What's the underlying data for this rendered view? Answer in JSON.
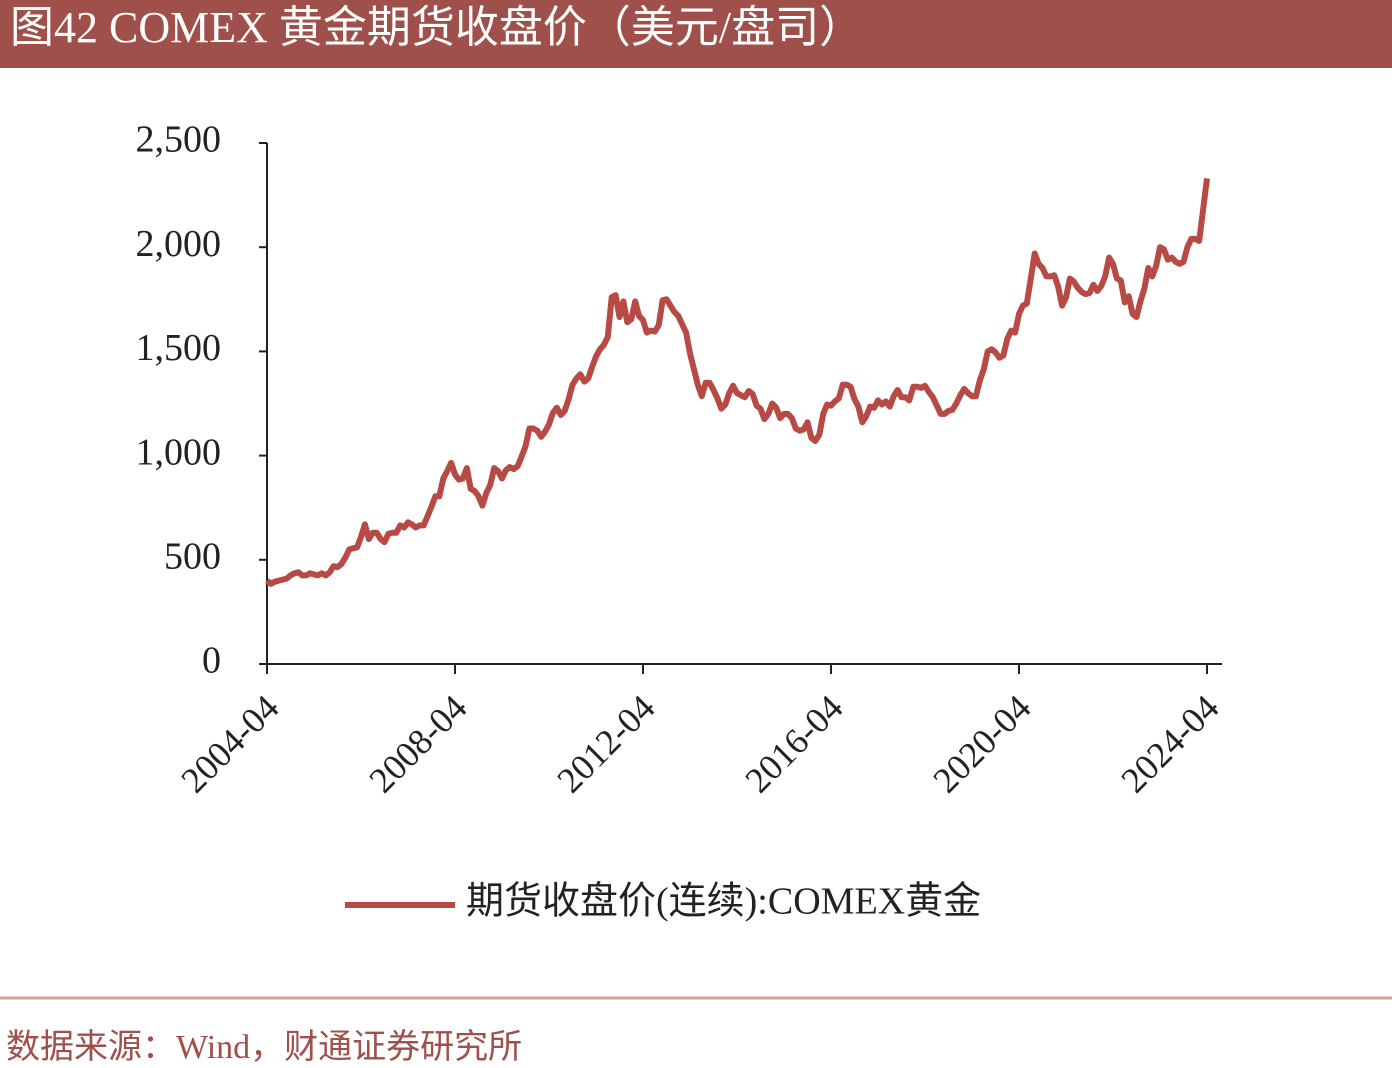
{
  "chart_data": {
    "type": "line",
    "title": "图42 COMEX 黄金期货收盘价（美元/盘司）",
    "source": "数据来源：Wind，财通证券研究所",
    "legend": "bottom",
    "x": [
      "2004-04",
      "2004-05",
      "2004-06",
      "2004-07",
      "2004-08",
      "2004-09",
      "2004-10",
      "2004-11",
      "2004-12",
      "2005-01",
      "2005-02",
      "2005-03",
      "2005-04",
      "2005-05",
      "2005-06",
      "2005-07",
      "2005-08",
      "2005-09",
      "2005-10",
      "2005-11",
      "2005-12",
      "2006-01",
      "2006-02",
      "2006-03",
      "2006-04",
      "2006-05",
      "2006-06",
      "2006-07",
      "2006-08",
      "2006-09",
      "2006-10",
      "2006-11",
      "2006-12",
      "2007-01",
      "2007-02",
      "2007-03",
      "2007-04",
      "2007-05",
      "2007-06",
      "2007-07",
      "2007-08",
      "2007-09",
      "2007-10",
      "2007-11",
      "2007-12",
      "2008-01",
      "2008-02",
      "2008-03",
      "2008-04",
      "2008-05",
      "2008-06",
      "2008-07",
      "2008-08",
      "2008-09",
      "2008-10",
      "2008-11",
      "2008-12",
      "2009-01",
      "2009-02",
      "2009-03",
      "2009-04",
      "2009-05",
      "2009-06",
      "2009-07",
      "2009-08",
      "2009-09",
      "2009-10",
      "2009-11",
      "2009-12",
      "2010-01",
      "2010-02",
      "2010-03",
      "2010-04",
      "2010-05",
      "2010-06",
      "2010-07",
      "2010-08",
      "2010-09",
      "2010-10",
      "2010-11",
      "2010-12",
      "2011-01",
      "2011-02",
      "2011-03",
      "2011-04",
      "2011-05",
      "2011-06",
      "2011-07",
      "2011-08",
      "2011-09",
      "2011-10",
      "2011-11",
      "2011-12",
      "2012-01",
      "2012-02",
      "2012-03",
      "2012-04",
      "2012-05",
      "2012-06",
      "2012-07",
      "2012-08",
      "2012-09",
      "2012-10",
      "2012-11",
      "2012-12",
      "2013-01",
      "2013-02",
      "2013-03",
      "2013-04",
      "2013-05",
      "2013-06",
      "2013-07",
      "2013-08",
      "2013-09",
      "2013-10",
      "2013-11",
      "2013-12",
      "2014-01",
      "2014-02",
      "2014-03",
      "2014-04",
      "2014-05",
      "2014-06",
      "2014-07",
      "2014-08",
      "2014-09",
      "2014-10",
      "2014-11",
      "2014-12",
      "2015-01",
      "2015-02",
      "2015-03",
      "2015-04",
      "2015-05",
      "2015-06",
      "2015-07",
      "2015-08",
      "2015-09",
      "2015-10",
      "2015-11",
      "2015-12",
      "2016-01",
      "2016-02",
      "2016-03",
      "2016-04",
      "2016-05",
      "2016-06",
      "2016-07",
      "2016-08",
      "2016-09",
      "2016-10",
      "2016-11",
      "2016-12",
      "2017-01",
      "2017-02",
      "2017-03",
      "2017-04",
      "2017-05",
      "2017-06",
      "2017-07",
      "2017-08",
      "2017-09",
      "2017-10",
      "2017-11",
      "2017-12",
      "2018-01",
      "2018-02",
      "2018-03",
      "2018-04",
      "2018-05",
      "2018-06",
      "2018-07",
      "2018-08",
      "2018-09",
      "2018-10",
      "2018-11",
      "2018-12",
      "2019-01",
      "2019-02",
      "2019-03",
      "2019-04",
      "2019-05",
      "2019-06",
      "2019-07",
      "2019-08",
      "2019-09",
      "2019-10",
      "2019-11",
      "2019-12",
      "2020-01",
      "2020-02",
      "2020-03",
      "2020-04",
      "2020-05",
      "2020-06",
      "2020-07",
      "2020-08",
      "2020-09",
      "2020-10",
      "2020-11",
      "2020-12",
      "2021-01",
      "2021-02",
      "2021-03",
      "2021-04",
      "2021-05",
      "2021-06",
      "2021-07",
      "2021-08",
      "2021-09",
      "2021-10",
      "2021-11",
      "2021-12",
      "2022-01",
      "2022-02",
      "2022-03",
      "2022-04",
      "2022-05",
      "2022-06",
      "2022-07",
      "2022-08",
      "2022-09",
      "2022-10",
      "2022-11",
      "2022-12",
      "2023-01",
      "2023-02",
      "2023-03",
      "2023-04",
      "2023-05",
      "2023-06",
      "2023-07",
      "2023-08",
      "2023-09",
      "2023-10",
      "2023-11",
      "2023-12",
      "2024-01",
      "2024-02",
      "2024-03",
      "2024-04"
    ],
    "series": [
      {
        "name": "期货收盘价(连续):COMEX黄金",
        "color": "#b84a45",
        "values": [
          400,
          385,
          395,
          400,
          405,
          410,
          425,
          435,
          440,
          425,
          425,
          435,
          430,
          425,
          435,
          425,
          440,
          470,
          465,
          480,
          510,
          550,
          555,
          560,
          610,
          670,
          600,
          630,
          630,
          600,
          585,
          625,
          630,
          630,
          665,
          655,
          680,
          670,
          655,
          665,
          665,
          710,
          755,
          805,
          805,
          890,
          925,
          965,
          910,
          885,
          890,
          940,
          840,
          830,
          805,
          760,
          820,
          860,
          940,
          925,
          890,
          930,
          945,
          935,
          950,
          995,
          1045,
          1130,
          1130,
          1120,
          1090,
          1115,
          1150,
          1205,
          1230,
          1195,
          1215,
          1270,
          1340,
          1370,
          1390,
          1355,
          1370,
          1425,
          1475,
          1510,
          1530,
          1570,
          1760,
          1770,
          1665,
          1740,
          1640,
          1655,
          1740,
          1670,
          1650,
          1590,
          1600,
          1595,
          1625,
          1745,
          1750,
          1720,
          1690,
          1670,
          1630,
          1590,
          1490,
          1415,
          1340,
          1285,
          1350,
          1350,
          1315,
          1275,
          1225,
          1245,
          1300,
          1335,
          1300,
          1290,
          1280,
          1310,
          1295,
          1240,
          1225,
          1175,
          1200,
          1250,
          1230,
          1180,
          1200,
          1200,
          1180,
          1130,
          1120,
          1125,
          1160,
          1085,
          1070,
          1100,
          1200,
          1245,
          1240,
          1260,
          1275,
          1340,
          1340,
          1330,
          1270,
          1235,
          1160,
          1190,
          1235,
          1230,
          1265,
          1245,
          1260,
          1235,
          1285,
          1315,
          1280,
          1280,
          1265,
          1330,
          1330,
          1325,
          1335,
          1305,
          1280,
          1240,
          1200,
          1200,
          1215,
          1220,
          1250,
          1290,
          1320,
          1300,
          1285,
          1285,
          1360,
          1415,
          1500,
          1510,
          1495,
          1470,
          1480,
          1560,
          1600,
          1590,
          1680,
          1720,
          1730,
          1850,
          1970,
          1920,
          1900,
          1860,
          1860,
          1865,
          1810,
          1720,
          1760,
          1850,
          1835,
          1805,
          1785,
          1775,
          1780,
          1820,
          1790,
          1815,
          1860,
          1950,
          1920,
          1850,
          1840,
          1735,
          1765,
          1680,
          1665,
          1740,
          1800,
          1900,
          1860,
          1910,
          2000,
          1990,
          1940,
          1950,
          1930,
          1920,
          1930,
          2000,
          2040,
          2040,
          2030,
          2180,
          2330
        ]
      }
    ],
    "xlim": [
      "2004-04",
      "2024-04"
    ],
    "xticks": [
      "2004-04",
      "2008-04",
      "2012-04",
      "2016-04",
      "2020-04",
      "2024-04"
    ],
    "ylim": [
      0,
      2500
    ],
    "yticks": [
      0,
      500,
      {
        "value": 1000,
        "label": "1,000"
      },
      {
        "value": 1500,
        "label": "1,500"
      },
      {
        "value": 2000,
        "label": "2,000"
      },
      {
        "value": 2500,
        "label": "2,500"
      }
    ]
  }
}
